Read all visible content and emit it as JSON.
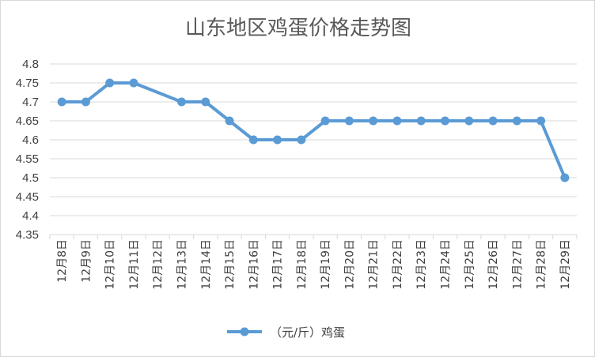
{
  "chart_data": {
    "type": "line",
    "title": "山东地区鸡蛋价格走势图",
    "categories": [
      "12月8日",
      "12月9日",
      "12月10日",
      "12月11日",
      "12月12日",
      "12月13日",
      "12月14日",
      "12月15日",
      "12月16日",
      "12月17日",
      "12月18日",
      "12月19日",
      "12月20日",
      "12月21日",
      "12月22日",
      "12月23日",
      "12月24日",
      "12月25日",
      "12月26日",
      "12月27日",
      "12月28日",
      "12月29日"
    ],
    "series": [
      {
        "name": "（元/斤）鸡蛋",
        "values": [
          4.7,
          4.7,
          4.75,
          4.75,
          null,
          4.7,
          4.7,
          4.65,
          4.6,
          4.6,
          4.6,
          4.65,
          4.65,
          4.65,
          4.65,
          4.65,
          4.65,
          4.65,
          4.65,
          4.65,
          4.65,
          4.5
        ],
        "color": "#5b9bd5"
      }
    ],
    "ylim": [
      4.35,
      4.8
    ],
    "yticks": [
      "4.35",
      "4.4",
      "4.45",
      "4.5",
      "4.55",
      "4.6",
      "4.65",
      "4.7",
      "4.75",
      "4.8"
    ],
    "grid": true,
    "legend": "bottom"
  }
}
